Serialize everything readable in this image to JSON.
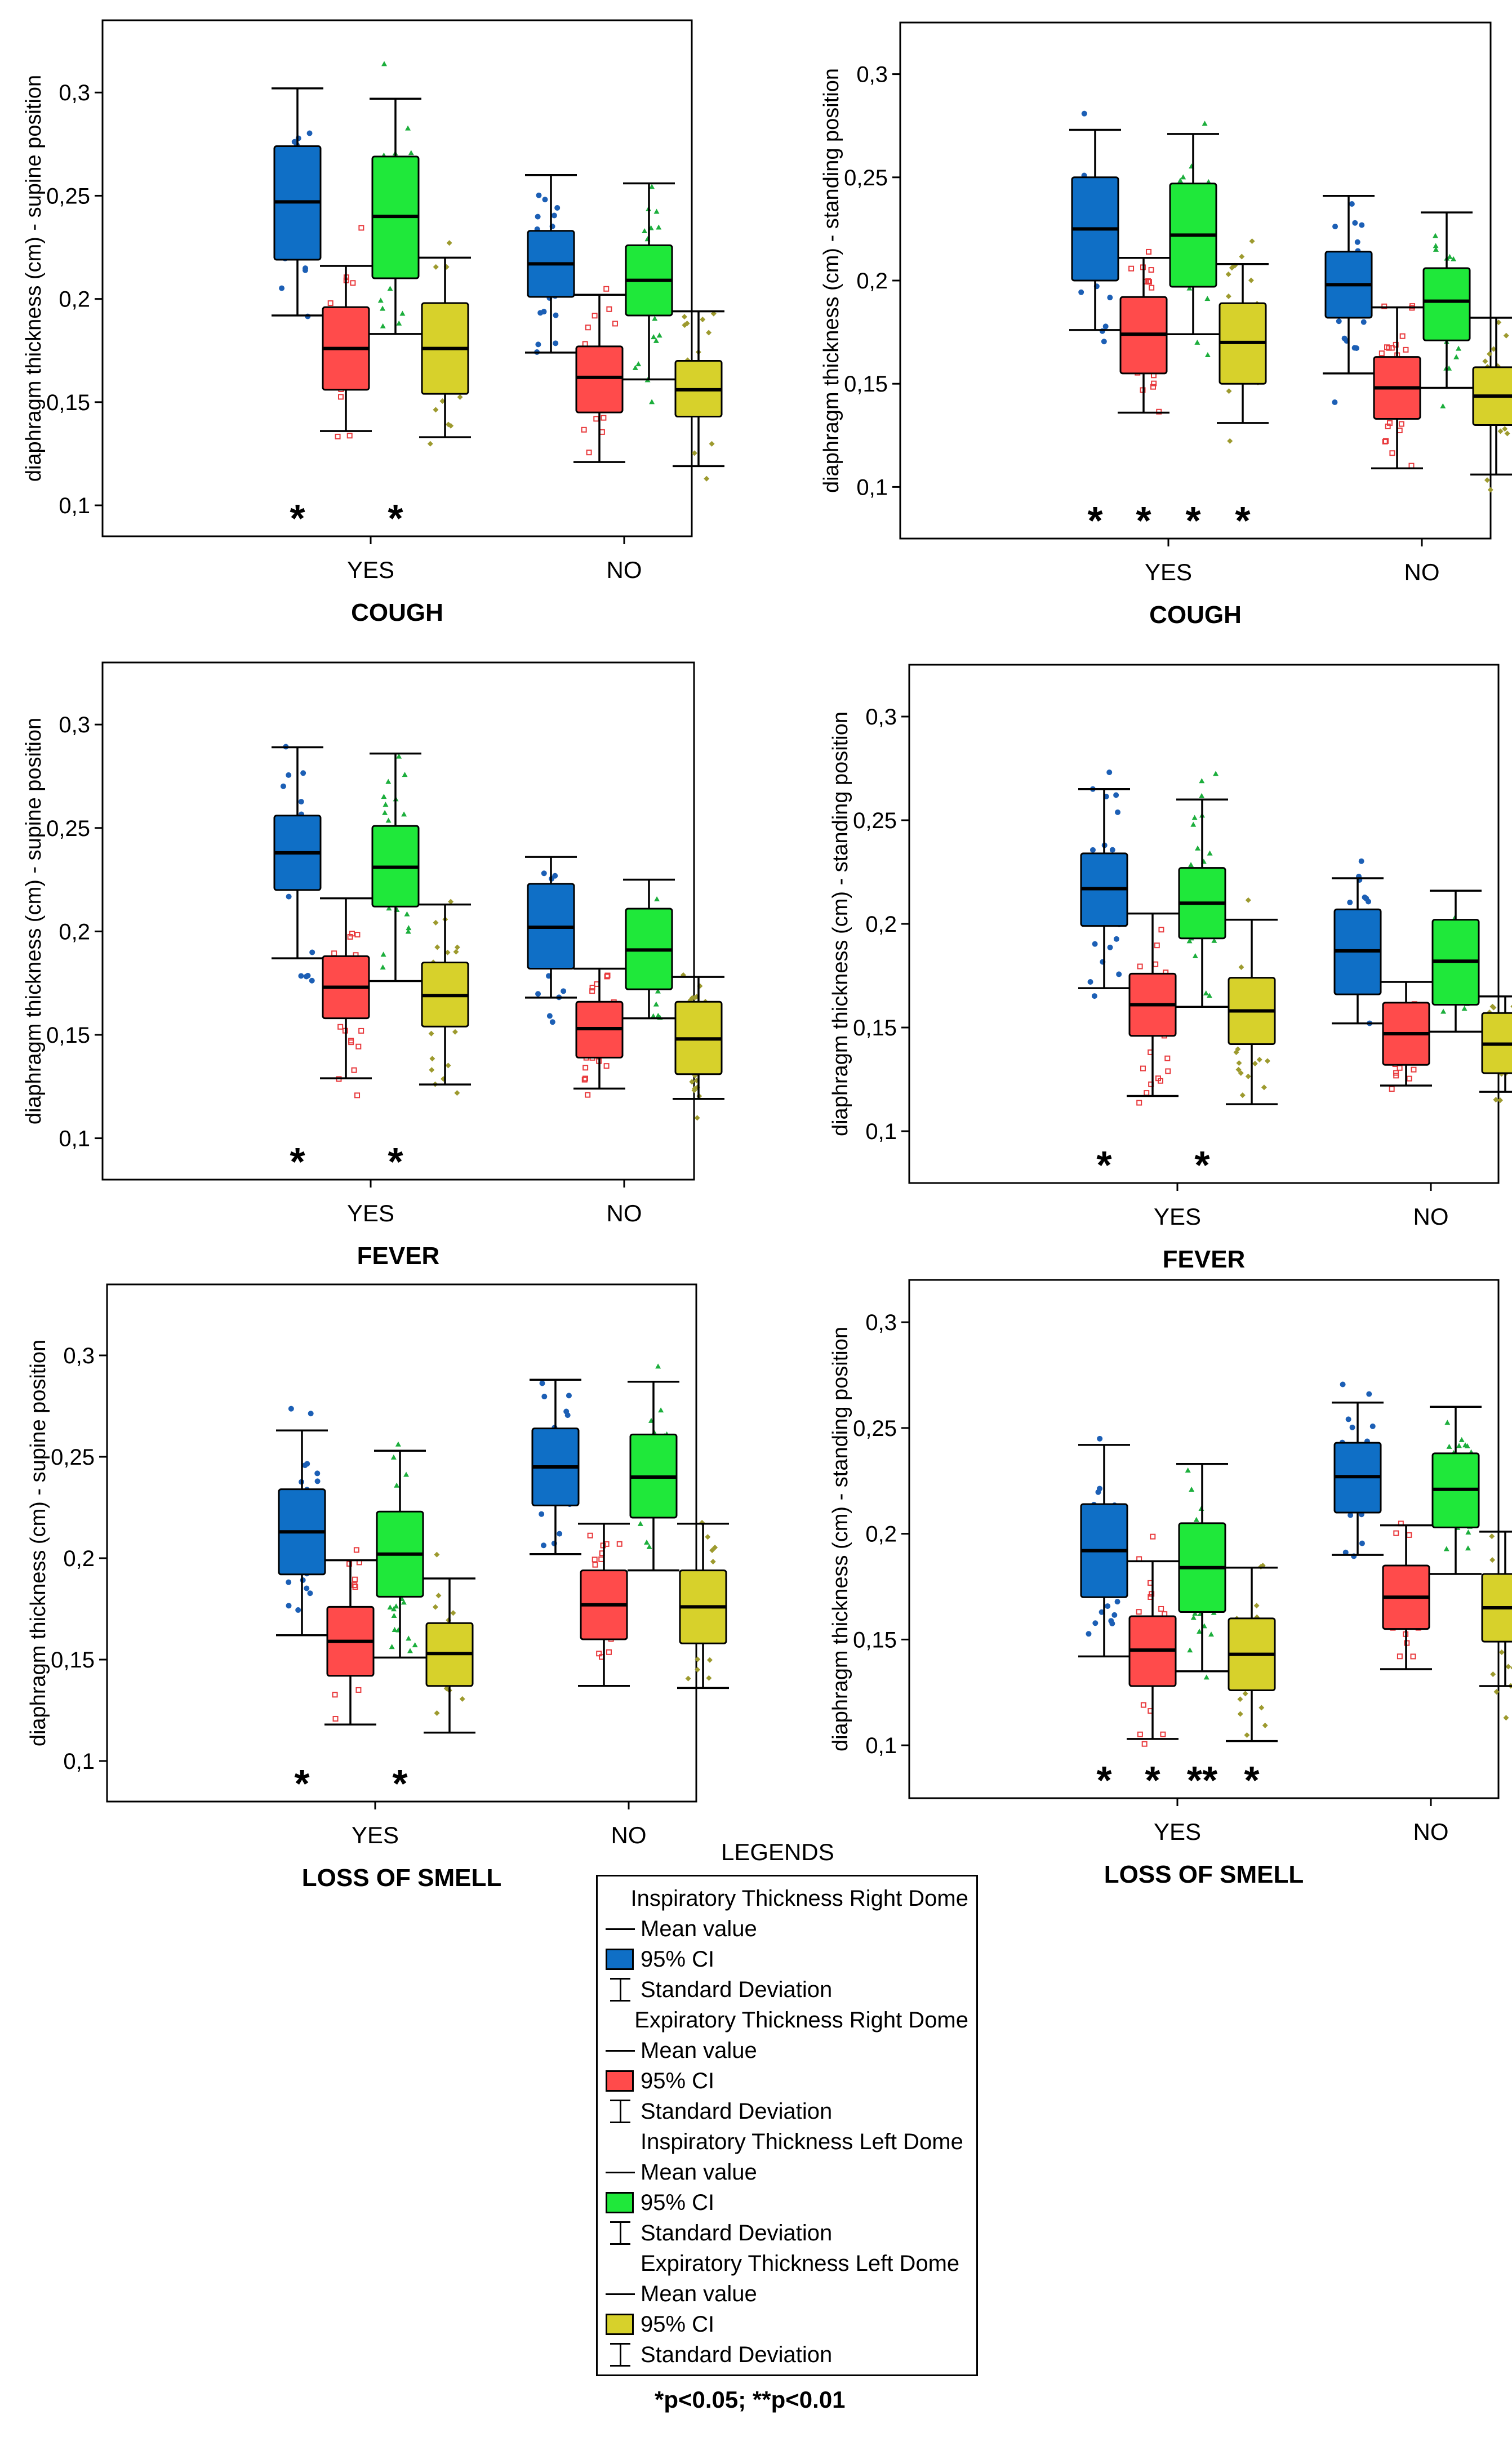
{
  "chart_data": [
    {
      "type": "box",
      "ylabel": "diaphragm thickness (cm) - supine position",
      "xlabel": "COUGH",
      "categories": [
        "YES",
        "NO"
      ],
      "yticks": [
        "0,1",
        "0,15",
        "0,2",
        "0,25",
        "0,3"
      ],
      "ylim": [
        0.085,
        0.335
      ],
      "series": [
        {
          "name": "Inspiratory Thickness Right Dome",
          "values": [
            {
              "category": "YES",
              "mean": 0.247,
              "ci": [
                0.219,
                0.274
              ],
              "sd": [
                0.192,
                0.302
              ],
              "star": "*"
            },
            {
              "category": "NO",
              "mean": 0.217,
              "ci": [
                0.201,
                0.233
              ],
              "sd": [
                0.174,
                0.26
              ],
              "star": ""
            }
          ]
        },
        {
          "name": "Expiratory Thickness Right Dome",
          "values": [
            {
              "category": "YES",
              "mean": 0.176,
              "ci": [
                0.156,
                0.196
              ],
              "sd": [
                0.136,
                0.216
              ],
              "star": ""
            },
            {
              "category": "NO",
              "mean": 0.162,
              "ci": [
                0.145,
                0.177
              ],
              "sd": [
                0.121,
                0.202
              ],
              "star": ""
            }
          ]
        },
        {
          "name": "Inspiratory Thickness Left Dome",
          "values": [
            {
              "category": "YES",
              "mean": 0.24,
              "ci": [
                0.21,
                0.269
              ],
              "sd": [
                0.183,
                0.297
              ],
              "star": "*"
            },
            {
              "category": "NO",
              "mean": 0.209,
              "ci": [
                0.192,
                0.226
              ],
              "sd": [
                0.161,
                0.256
              ],
              "star": ""
            }
          ]
        },
        {
          "name": "Expiratory Thickness Left Dome",
          "values": [
            {
              "category": "YES",
              "mean": 0.176,
              "ci": [
                0.154,
                0.198
              ],
              "sd": [
                0.133,
                0.22
              ],
              "star": ""
            },
            {
              "category": "NO",
              "mean": 0.156,
              "ci": [
                0.143,
                0.17
              ],
              "sd": [
                0.119,
                0.194
              ],
              "star": ""
            }
          ]
        }
      ]
    },
    {
      "type": "box",
      "ylabel": "diaphragm thickness (cm) - standing position",
      "xlabel": "COUGH",
      "categories": [
        "YES",
        "NO"
      ],
      "yticks": [
        "0,1",
        "0,15",
        "0,2",
        "0,25",
        "0,3"
      ],
      "ylim": [
        0.075,
        0.325
      ],
      "series": [
        {
          "name": "Inspiratory Thickness Right Dome",
          "values": [
            {
              "category": "YES",
              "mean": 0.225,
              "ci": [
                0.2,
                0.25
              ],
              "sd": [
                0.176,
                0.273
              ],
              "star": "*"
            },
            {
              "category": "NO",
              "mean": 0.198,
              "ci": [
                0.182,
                0.214
              ],
              "sd": [
                0.155,
                0.241
              ],
              "star": ""
            }
          ]
        },
        {
          "name": "Expiratory Thickness Right Dome",
          "values": [
            {
              "category": "YES",
              "mean": 0.174,
              "ci": [
                0.155,
                0.192
              ],
              "sd": [
                0.136,
                0.211
              ],
              "star": "*"
            },
            {
              "category": "NO",
              "mean": 0.148,
              "ci": [
                0.133,
                0.163
              ],
              "sd": [
                0.109,
                0.187
              ],
              "star": ""
            }
          ]
        },
        {
          "name": "Inspiratory Thickness Left Dome",
          "values": [
            {
              "category": "YES",
              "mean": 0.222,
              "ci": [
                0.197,
                0.247
              ],
              "sd": [
                0.174,
                0.271
              ],
              "star": "*"
            },
            {
              "category": "NO",
              "mean": 0.19,
              "ci": [
                0.171,
                0.206
              ],
              "sd": [
                0.148,
                0.233
              ],
              "star": ""
            }
          ]
        },
        {
          "name": "Expiratory Thickness Left Dome",
          "values": [
            {
              "category": "YES",
              "mean": 0.17,
              "ci": [
                0.15,
                0.189
              ],
              "sd": [
                0.131,
                0.208
              ],
              "star": "*"
            },
            {
              "category": "NO",
              "mean": 0.144,
              "ci": [
                0.13,
                0.158
              ],
              "sd": [
                0.106,
                0.182
              ],
              "star": ""
            }
          ]
        }
      ]
    },
    {
      "type": "box",
      "ylabel": "diaphragm thickness (cm) - supine position",
      "xlabel": "FEVER",
      "categories": [
        "YES",
        "NO"
      ],
      "yticks": [
        "0,1",
        "0,15",
        "0,2",
        "0,25",
        "0,3"
      ],
      "ylim": [
        0.08,
        0.33
      ],
      "series": [
        {
          "name": "Inspiratory Thickness Right Dome",
          "values": [
            {
              "category": "YES",
              "mean": 0.238,
              "ci": [
                0.22,
                0.256
              ],
              "sd": [
                0.187,
                0.289
              ],
              "star": "*"
            },
            {
              "category": "NO",
              "mean": 0.202,
              "ci": [
                0.182,
                0.223
              ],
              "sd": [
                0.168,
                0.236
              ],
              "star": ""
            }
          ]
        },
        {
          "name": "Expiratory Thickness Right Dome",
          "values": [
            {
              "category": "YES",
              "mean": 0.173,
              "ci": [
                0.158,
                0.188
              ],
              "sd": [
                0.129,
                0.216
              ],
              "star": ""
            },
            {
              "category": "NO",
              "mean": 0.153,
              "ci": [
                0.139,
                0.166
              ],
              "sd": [
                0.124,
                0.182
              ],
              "star": ""
            }
          ]
        },
        {
          "name": "Inspiratory Thickness Left Dome",
          "values": [
            {
              "category": "YES",
              "mean": 0.231,
              "ci": [
                0.212,
                0.251
              ],
              "sd": [
                0.176,
                0.286
              ],
              "star": "*"
            },
            {
              "category": "NO",
              "mean": 0.191,
              "ci": [
                0.172,
                0.211
              ],
              "sd": [
                0.158,
                0.225
              ],
              "star": ""
            }
          ]
        },
        {
          "name": "Expiratory Thickness Left Dome",
          "values": [
            {
              "category": "YES",
              "mean": 0.169,
              "ci": [
                0.154,
                0.185
              ],
              "sd": [
                0.126,
                0.213
              ],
              "star": ""
            },
            {
              "category": "NO",
              "mean": 0.148,
              "ci": [
                0.131,
                0.166
              ],
              "sd": [
                0.119,
                0.178
              ],
              "star": ""
            }
          ]
        }
      ]
    },
    {
      "type": "box",
      "ylabel": "diaphragm thickness (cm) - standing position",
      "xlabel": "FEVER",
      "categories": [
        "YES",
        "NO"
      ],
      "yticks": [
        "0,1",
        "0,15",
        "0,2",
        "0,25",
        "0,3"
      ],
      "ylim": [
        0.075,
        0.325
      ],
      "series": [
        {
          "name": "Inspiratory Thickness Right Dome",
          "values": [
            {
              "category": "YES",
              "mean": 0.217,
              "ci": [
                0.199,
                0.234
              ],
              "sd": [
                0.169,
                0.265
              ],
              "star": "*"
            },
            {
              "category": "NO",
              "mean": 0.187,
              "ci": [
                0.166,
                0.207
              ],
              "sd": [
                0.152,
                0.222
              ],
              "star": ""
            }
          ]
        },
        {
          "name": "Expiratory Thickness Right Dome",
          "values": [
            {
              "category": "YES",
              "mean": 0.161,
              "ci": [
                0.146,
                0.176
              ],
              "sd": [
                0.117,
                0.205
              ],
              "star": ""
            },
            {
              "category": "NO",
              "mean": 0.147,
              "ci": [
                0.132,
                0.162
              ],
              "sd": [
                0.122,
                0.172
              ],
              "star": ""
            }
          ]
        },
        {
          "name": "Inspiratory Thickness Left Dome",
          "values": [
            {
              "category": "YES",
              "mean": 0.21,
              "ci": [
                0.193,
                0.227
              ],
              "sd": [
                0.16,
                0.26
              ],
              "star": "*"
            },
            {
              "category": "NO",
              "mean": 0.182,
              "ci": [
                0.161,
                0.202
              ],
              "sd": [
                0.148,
                0.216
              ],
              "star": ""
            }
          ]
        },
        {
          "name": "Expiratory Thickness Left Dome",
          "values": [
            {
              "category": "YES",
              "mean": 0.158,
              "ci": [
                0.142,
                0.174
              ],
              "sd": [
                0.113,
                0.202
              ],
              "star": ""
            },
            {
              "category": "NO",
              "mean": 0.142,
              "ci": [
                0.128,
                0.157
              ],
              "sd": [
                0.119,
                0.165
              ],
              "star": ""
            }
          ]
        }
      ]
    },
    {
      "type": "box",
      "ylabel": "diaphragm thickness (cm) - supine position",
      "xlabel": "LOSS OF SMELL",
      "categories": [
        "YES",
        "NO"
      ],
      "yticks": [
        "0,1",
        "0,15",
        "0,2",
        "0,25",
        "0,3"
      ],
      "ylim": [
        0.08,
        0.335
      ],
      "series": [
        {
          "name": "Inspiratory Thickness Right Dome",
          "values": [
            {
              "category": "YES",
              "mean": 0.213,
              "ci": [
                0.192,
                0.234
              ],
              "sd": [
                0.162,
                0.263
              ],
              "star": "*"
            },
            {
              "category": "NO",
              "mean": 0.245,
              "ci": [
                0.226,
                0.264
              ],
              "sd": [
                0.202,
                0.288
              ],
              "star": ""
            }
          ]
        },
        {
          "name": "Expiratory Thickness Right Dome",
          "values": [
            {
              "category": "YES",
              "mean": 0.159,
              "ci": [
                0.142,
                0.176
              ],
              "sd": [
                0.118,
                0.199
              ],
              "star": ""
            },
            {
              "category": "NO",
              "mean": 0.177,
              "ci": [
                0.16,
                0.194
              ],
              "sd": [
                0.137,
                0.217
              ],
              "star": ""
            }
          ]
        },
        {
          "name": "Inspiratory Thickness Left Dome",
          "values": [
            {
              "category": "YES",
              "mean": 0.202,
              "ci": [
                0.181,
                0.223
              ],
              "sd": [
                0.151,
                0.253
              ],
              "star": "*"
            },
            {
              "category": "NO",
              "mean": 0.24,
              "ci": [
                0.22,
                0.261
              ],
              "sd": [
                0.194,
                0.287
              ],
              "star": ""
            }
          ]
        },
        {
          "name": "Expiratory Thickness Left Dome",
          "values": [
            {
              "category": "YES",
              "mean": 0.153,
              "ci": [
                0.137,
                0.168
              ],
              "sd": [
                0.114,
                0.19
              ],
              "star": ""
            },
            {
              "category": "NO",
              "mean": 0.176,
              "ci": [
                0.158,
                0.194
              ],
              "sd": [
                0.136,
                0.217
              ],
              "star": ""
            }
          ]
        }
      ]
    },
    {
      "type": "box",
      "ylabel": "diaphragm thickness (cm) - standing position",
      "xlabel": "LOSS OF SMELL",
      "categories": [
        "YES",
        "NO"
      ],
      "yticks": [
        "0,1",
        "0,15",
        "0,2",
        "0,25",
        "0,3"
      ],
      "ylim": [
        0.075,
        0.32
      ],
      "series": [
        {
          "name": "Inspiratory Thickness Right Dome",
          "values": [
            {
              "category": "YES",
              "mean": 0.192,
              "ci": [
                0.17,
                0.214
              ],
              "sd": [
                0.142,
                0.242
              ],
              "star": "*"
            },
            {
              "category": "NO",
              "mean": 0.227,
              "ci": [
                0.21,
                0.243
              ],
              "sd": [
                0.19,
                0.262
              ],
              "star": ""
            }
          ]
        },
        {
          "name": "Expiratory Thickness Right Dome",
          "values": [
            {
              "category": "YES",
              "mean": 0.145,
              "ci": [
                0.128,
                0.161
              ],
              "sd": [
                0.103,
                0.187
              ],
              "star": "*"
            },
            {
              "category": "NO",
              "mean": 0.17,
              "ci": [
                0.155,
                0.185
              ],
              "sd": [
                0.136,
                0.204
              ],
              "star": ""
            }
          ]
        },
        {
          "name": "Inspiratory Thickness Left Dome",
          "values": [
            {
              "category": "YES",
              "mean": 0.184,
              "ci": [
                0.163,
                0.205
              ],
              "sd": [
                0.135,
                0.233
              ],
              "star": "**"
            },
            {
              "category": "NO",
              "mean": 0.221,
              "ci": [
                0.203,
                0.238
              ],
              "sd": [
                0.181,
                0.26
              ],
              "star": ""
            }
          ]
        },
        {
          "name": "Expiratory Thickness Left Dome",
          "values": [
            {
              "category": "YES",
              "mean": 0.143,
              "ci": [
                0.126,
                0.16
              ],
              "sd": [
                0.102,
                0.184
              ],
              "star": "*"
            },
            {
              "category": "NO",
              "mean": 0.165,
              "ci": [
                0.149,
                0.181
              ],
              "sd": [
                0.128,
                0.201
              ],
              "star": ""
            }
          ]
        }
      ]
    }
  ],
  "legend": {
    "title": "LEGENDS",
    "mean_label": "Mean value",
    "ci_label": "95% CI",
    "sd_label": "Standard Deviation",
    "entries": [
      {
        "name": "Inspiratory Thickness Right Dome",
        "color": "#0f6fc6"
      },
      {
        "name": "Expiratory Thickness Right Dome",
        "color": "#ff4b4b"
      },
      {
        "name": "Inspiratory Thickness Left Dome",
        "color": "#1fe83a"
      },
      {
        "name": "Expiratory Thickness Left Dome",
        "color": "#d7d12b"
      }
    ]
  },
  "point_colors": [
    "#1c5fb5",
    "#e8393c",
    "#1cae3c",
    "#9d9a2e"
  ],
  "footnote": "*p<0.05; **p<0.01"
}
